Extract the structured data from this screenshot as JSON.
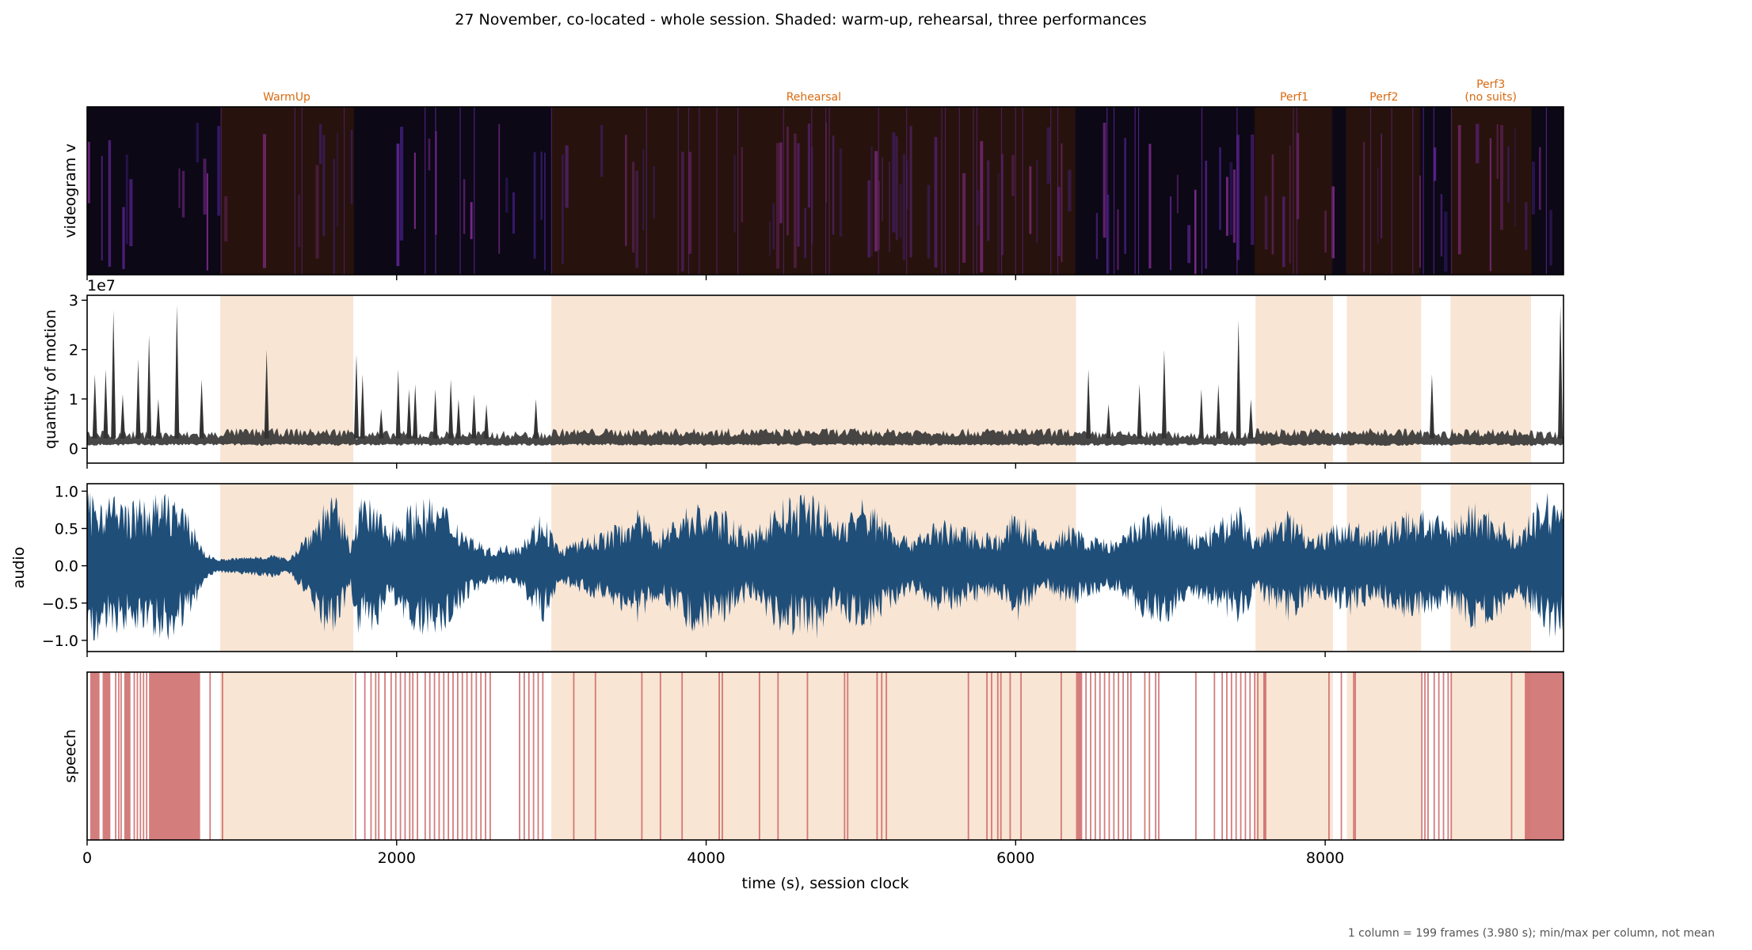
{
  "chart_data": {
    "type": "multi-panel time series",
    "title": "27 November, co-located - whole session. Shaded: warm-up, rehearsal, three performances",
    "xlabel": "time (s), session clock",
    "xlim": [
      0,
      9540
    ],
    "x_ticks": [
      0,
      2000,
      4000,
      6000,
      8000
    ],
    "footnote": "1 column = 199 frames (3.980 s); min/max per column, not mean",
    "segments": [
      {
        "label": "WarmUp",
        "start": 860,
        "end": 1720
      },
      {
        "label": "Rehearsal",
        "start": 3000,
        "end": 6390
      },
      {
        "label": "Perf1",
        "start": 7550,
        "end": 8050
      },
      {
        "label": "Perf2",
        "start": 8140,
        "end": 8620
      },
      {
        "label": "Perf3\n(no suits)",
        "start": 8810,
        "end": 9330
      }
    ],
    "segment_color": "#f5dcc6",
    "segment_label_color": "#d96a10",
    "panels": [
      {
        "id": "videogram",
        "ylabel": "videogram v",
        "kind": "image",
        "colormap": "magma-like (black to purple)"
      },
      {
        "id": "qom",
        "ylabel": "quantity of motion",
        "offset_label": "1e7",
        "ylim": [
          -0.3,
          3.1
        ],
        "y_ticks": [
          0,
          1,
          2,
          3
        ],
        "color": "#333333",
        "baseline": 0.1,
        "spikes": [
          {
            "x": 50,
            "y": 1.5
          },
          {
            "x": 120,
            "y": 1.6
          },
          {
            "x": 170,
            "y": 2.8
          },
          {
            "x": 230,
            "y": 1.1
          },
          {
            "x": 330,
            "y": 1.8
          },
          {
            "x": 400,
            "y": 2.3
          },
          {
            "x": 460,
            "y": 1.0
          },
          {
            "x": 580,
            "y": 2.9
          },
          {
            "x": 740,
            "y": 1.4
          },
          {
            "x": 1160,
            "y": 2.0
          },
          {
            "x": 1740,
            "y": 1.9
          },
          {
            "x": 1780,
            "y": 1.5
          },
          {
            "x": 1900,
            "y": 0.8
          },
          {
            "x": 2010,
            "y": 1.6
          },
          {
            "x": 2080,
            "y": 1.2
          },
          {
            "x": 2120,
            "y": 1.3
          },
          {
            "x": 2250,
            "y": 1.2
          },
          {
            "x": 2350,
            "y": 1.4
          },
          {
            "x": 2400,
            "y": 1.0
          },
          {
            "x": 2500,
            "y": 1.1
          },
          {
            "x": 2580,
            "y": 0.9
          },
          {
            "x": 2900,
            "y": 1.0
          },
          {
            "x": 6470,
            "y": 1.6
          },
          {
            "x": 6600,
            "y": 0.9
          },
          {
            "x": 6800,
            "y": 1.3
          },
          {
            "x": 6960,
            "y": 2.0
          },
          {
            "x": 7200,
            "y": 1.2
          },
          {
            "x": 7310,
            "y": 1.3
          },
          {
            "x": 7440,
            "y": 2.6
          },
          {
            "x": 7520,
            "y": 1.0
          },
          {
            "x": 8690,
            "y": 1.5
          },
          {
            "x": 9520,
            "y": 2.9
          }
        ]
      },
      {
        "id": "audio",
        "ylabel": "audio",
        "ylim": [
          -1.15,
          1.1
        ],
        "y_ticks": [
          -1.0,
          -0.5,
          0.0,
          0.5,
          1.0
        ],
        "y_tick_labels": [
          "−1.0",
          "−0.5",
          "0.0",
          "0.5",
          "1.0"
        ],
        "color": "#1f4e79",
        "envelope": [
          [
            0,
            0.95
          ],
          [
            120,
            1.0
          ],
          [
            250,
            0.85
          ],
          [
            400,
            0.9
          ],
          [
            550,
            1.0
          ],
          [
            700,
            0.5
          ],
          [
            760,
            0.15
          ],
          [
            850,
            0.05
          ],
          [
            1100,
            0.1
          ],
          [
            1200,
            0.12
          ],
          [
            1300,
            0.05
          ],
          [
            1500,
            0.7
          ],
          [
            1560,
            1.0
          ],
          [
            1620,
            0.85
          ],
          [
            1700,
            0.3
          ],
          [
            1750,
            0.9
          ],
          [
            1850,
            0.85
          ],
          [
            1950,
            0.55
          ],
          [
            2050,
            0.75
          ],
          [
            2150,
            0.9
          ],
          [
            2300,
            0.85
          ],
          [
            2450,
            0.45
          ],
          [
            2600,
            0.2
          ],
          [
            2800,
            0.3
          ],
          [
            2950,
            0.75
          ],
          [
            3050,
            0.2
          ],
          [
            3200,
            0.35
          ],
          [
            3400,
            0.5
          ],
          [
            3550,
            0.75
          ],
          [
            3700,
            0.45
          ],
          [
            3900,
            0.85
          ],
          [
            4100,
            0.75
          ],
          [
            4300,
            0.4
          ],
          [
            4450,
            0.85
          ],
          [
            4550,
            0.9
          ],
          [
            4700,
            1.0
          ],
          [
            4850,
            0.6
          ],
          [
            5000,
            0.9
          ],
          [
            5150,
            0.7
          ],
          [
            5300,
            0.35
          ],
          [
            5500,
            0.6
          ],
          [
            5700,
            0.5
          ],
          [
            5900,
            0.4
          ],
          [
            6000,
            0.75
          ],
          [
            6200,
            0.3
          ],
          [
            6350,
            0.55
          ],
          [
            6450,
            0.4
          ],
          [
            6650,
            0.3
          ],
          [
            6800,
            0.65
          ],
          [
            6950,
            0.8
          ],
          [
            7150,
            0.4
          ],
          [
            7300,
            0.55
          ],
          [
            7450,
            0.85
          ],
          [
            7550,
            0.35
          ],
          [
            7750,
            0.75
          ],
          [
            7950,
            0.4
          ],
          [
            8150,
            0.65
          ],
          [
            8300,
            0.45
          ],
          [
            8500,
            0.7
          ],
          [
            8650,
            0.75
          ],
          [
            8800,
            0.55
          ],
          [
            8950,
            0.85
          ],
          [
            9100,
            0.7
          ],
          [
            9250,
            0.4
          ],
          [
            9400,
            0.95
          ],
          [
            9540,
            0.95
          ]
        ]
      },
      {
        "id": "speech",
        "ylabel": "speech",
        "kind": "event raster",
        "color": "#cc6666",
        "blocks": [
          [
            20,
            80
          ],
          [
            100,
            150
          ],
          [
            240,
            280
          ],
          [
            400,
            730
          ],
          [
            9290,
            9540
          ],
          [
            6390,
            6430
          ],
          [
            7600,
            7620
          ]
        ],
        "lines": [
          180,
          200,
          215,
          300,
          320,
          340,
          360,
          380,
          790,
          870,
          1730,
          1790,
          1830,
          1860,
          1880,
          1920,
          1960,
          1990,
          2020,
          2050,
          2080,
          2100,
          2130,
          2180,
          2210,
          2240,
          2270,
          2300,
          2330,
          2360,
          2390,
          2420,
          2450,
          2480,
          2510,
          2540,
          2570,
          2600,
          2790,
          2820,
          2850,
          2880,
          2910,
          2940,
          3140,
          3280,
          3580,
          3700,
          3840,
          4080,
          4100,
          4340,
          4460,
          4650,
          4890,
          4910,
          5100,
          5130,
          5160,
          5690,
          5810,
          5840,
          5880,
          5900,
          5960,
          6030,
          6290,
          6450,
          6480,
          6510,
          6540,
          6570,
          6600,
          6630,
          6660,
          6690,
          6720,
          6740,
          6830,
          6860,
          6900,
          6920,
          7160,
          7280,
          7330,
          7360,
          7390,
          7420,
          7450,
          7480,
          7510,
          7540,
          7560,
          8020,
          8100,
          8180,
          8190,
          8620,
          8640,
          8660,
          8700,
          8730,
          8760,
          8790,
          8810,
          9200
        ]
      }
    ]
  }
}
